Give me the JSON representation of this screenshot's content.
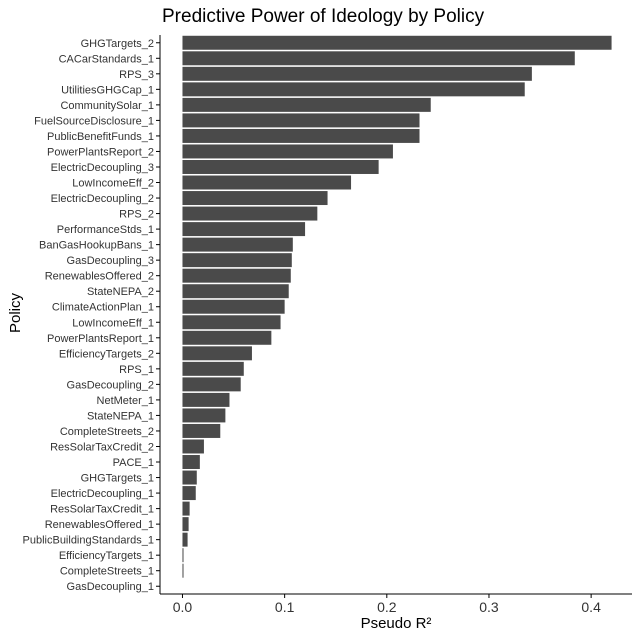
{
  "chart_data": {
    "type": "bar",
    "orientation": "horizontal",
    "title": "Predictive Power of Ideology by Policy",
    "xlabel": "Pseudo R²",
    "ylabel": "Policy",
    "xlim": [
      -0.022,
      0.44
    ],
    "xticks": [
      "0.0",
      "0.1",
      "0.2",
      "0.3",
      "0.4"
    ],
    "grid": false,
    "bar_color": "#4a4a4a",
    "categories": [
      "GHGTargets_2",
      "CACarStandards_1",
      "RPS_3",
      "UtilitiesGHGCap_1",
      "CommunitySolar_1",
      "FuelSourceDisclosure_1",
      "PublicBenefitFunds_1",
      "PowerPlantsReport_2",
      "ElectricDecoupling_3",
      "LowIncomeEff_2",
      "ElectricDecoupling_2",
      "RPS_2",
      "PerformanceStds_1",
      "BanGasHookupBans_1",
      "GasDecoupling_3",
      "RenewablesOffered_2",
      "StateNEPA_2",
      "ClimateActionPlan_1",
      "LowIncomeEff_1",
      "PowerPlantsReport_1",
      "EfficiencyTargets_2",
      "RPS_1",
      "GasDecoupling_2",
      "NetMeter_1",
      "StateNEPA_1",
      "CompleteStreets_2",
      "ResSolarTaxCredit_2",
      "PACE_1",
      "GHGTargets_1",
      "ElectricDecoupling_1",
      "ResSolarTaxCredit_1",
      "RenewablesOffered_1",
      "PublicBuildingStandards_1",
      "EfficiencyTargets_1",
      "CompleteStreets_1",
      "GasDecoupling_1"
    ],
    "values": [
      0.42,
      0.384,
      0.342,
      0.335,
      0.243,
      0.232,
      0.232,
      0.206,
      0.192,
      0.165,
      0.142,
      0.132,
      0.12,
      0.108,
      0.107,
      0.106,
      0.104,
      0.1,
      0.096,
      0.087,
      0.068,
      0.06,
      0.057,
      0.046,
      0.042,
      0.037,
      0.021,
      0.017,
      0.014,
      0.013,
      0.007,
      0.006,
      0.005,
      0.001,
      0.001,
      0.0
    ]
  }
}
